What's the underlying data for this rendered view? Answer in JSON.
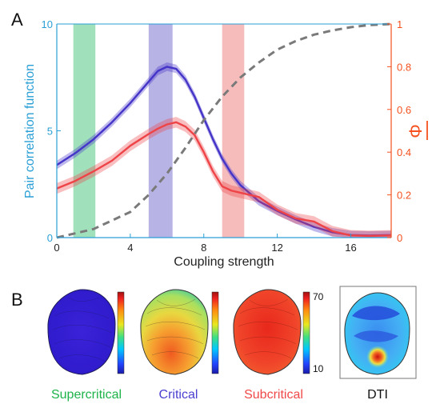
{
  "panel_a": {
    "label": "A",
    "xlabel": "Coupling strength",
    "ylabel_left": "Pair correlation function",
    "ylabel_right": "Φ",
    "x_ticks": [
      "0",
      "4",
      "8",
      "12",
      "16"
    ],
    "y_left_ticks": [
      "0",
      "5",
      "10"
    ],
    "y_right_ticks": [
      "0",
      "0.2",
      "0.4",
      "0.6",
      "0.8",
      "1"
    ]
  },
  "panel_b": {
    "label": "B",
    "maps": [
      {
        "label": "Supercritical",
        "label_color": "#1db34a"
      },
      {
        "label": "Critical",
        "label_color": "#4a3fd0"
      },
      {
        "label": "Subcritical",
        "label_color": "#f04848"
      },
      {
        "label": "DTI",
        "label_color": "#111111"
      }
    ],
    "colorbar_max": "70",
    "colorbar_min": "10"
  },
  "colors": {
    "left_axis": "#2a9fd6",
    "right_axis": "#f4511e",
    "critical": "#4434c8",
    "subcritical": "#ee4448",
    "phi": "#7a7a7a"
  },
  "chart_data": [
    {
      "type": "line",
      "xlim": [
        0,
        18.2
      ],
      "ylim_left": [
        0,
        10
      ],
      "ylim_right": [
        0,
        1
      ],
      "grid": false,
      "shaded_bands": [
        {
          "x": [
            0.9,
            2.1
          ],
          "color": "#8fdcb0",
          "regime": "Supercritical"
        },
        {
          "x": [
            5.0,
            6.3
          ],
          "color": "#aaa6e0",
          "regime": "Critical"
        },
        {
          "x": [
            9.0,
            10.2
          ],
          "color": "#f5b0b0",
          "regime": "Subcritical"
        }
      ],
      "series": [
        {
          "axis": "left",
          "style": "solid",
          "x": [
            0,
            1,
            2,
            3,
            4,
            5,
            5.5,
            6,
            6.5,
            7,
            7.5,
            8,
            8.5,
            9,
            9.5,
            10,
            11,
            12,
            13,
            14,
            15,
            16,
            17,
            18.2
          ],
          "y": [
            3.4,
            3.95,
            4.6,
            5.4,
            6.3,
            7.3,
            7.8,
            8.0,
            7.9,
            7.4,
            6.6,
            5.6,
            4.6,
            3.7,
            3.0,
            2.45,
            1.7,
            1.25,
            0.85,
            0.5,
            0.25,
            0.12,
            0.1,
            0.12
          ],
          "band": 0.2
        },
        {
          "axis": "left",
          "style": "solid",
          "x": [
            0,
            1,
            2,
            3,
            4,
            5,
            5.5,
            6,
            6.5,
            7,
            7.5,
            8,
            8.5,
            9,
            9.5,
            10,
            11,
            12,
            13,
            14,
            15,
            16,
            17,
            18.2
          ],
          "y": [
            2.3,
            2.65,
            3.1,
            3.6,
            4.3,
            4.85,
            5.1,
            5.3,
            5.4,
            5.2,
            4.8,
            4.0,
            3.1,
            2.4,
            2.2,
            2.1,
            1.9,
            1.3,
            0.9,
            0.75,
            0.3,
            0.1,
            0.08,
            0.1
          ],
          "band": 0.25
        },
        {
          "axis": "right",
          "style": "dashed",
          "x": [
            0,
            1,
            2,
            3,
            4,
            5,
            6,
            7,
            8,
            9,
            10,
            11,
            12,
            13,
            14,
            15,
            16,
            17,
            18.2
          ],
          "y": [
            0.0,
            0.02,
            0.04,
            0.08,
            0.12,
            0.2,
            0.3,
            0.42,
            0.55,
            0.66,
            0.75,
            0.82,
            0.88,
            0.92,
            0.95,
            0.97,
            0.985,
            0.995,
            1.0
          ]
        }
      ]
    }
  ]
}
